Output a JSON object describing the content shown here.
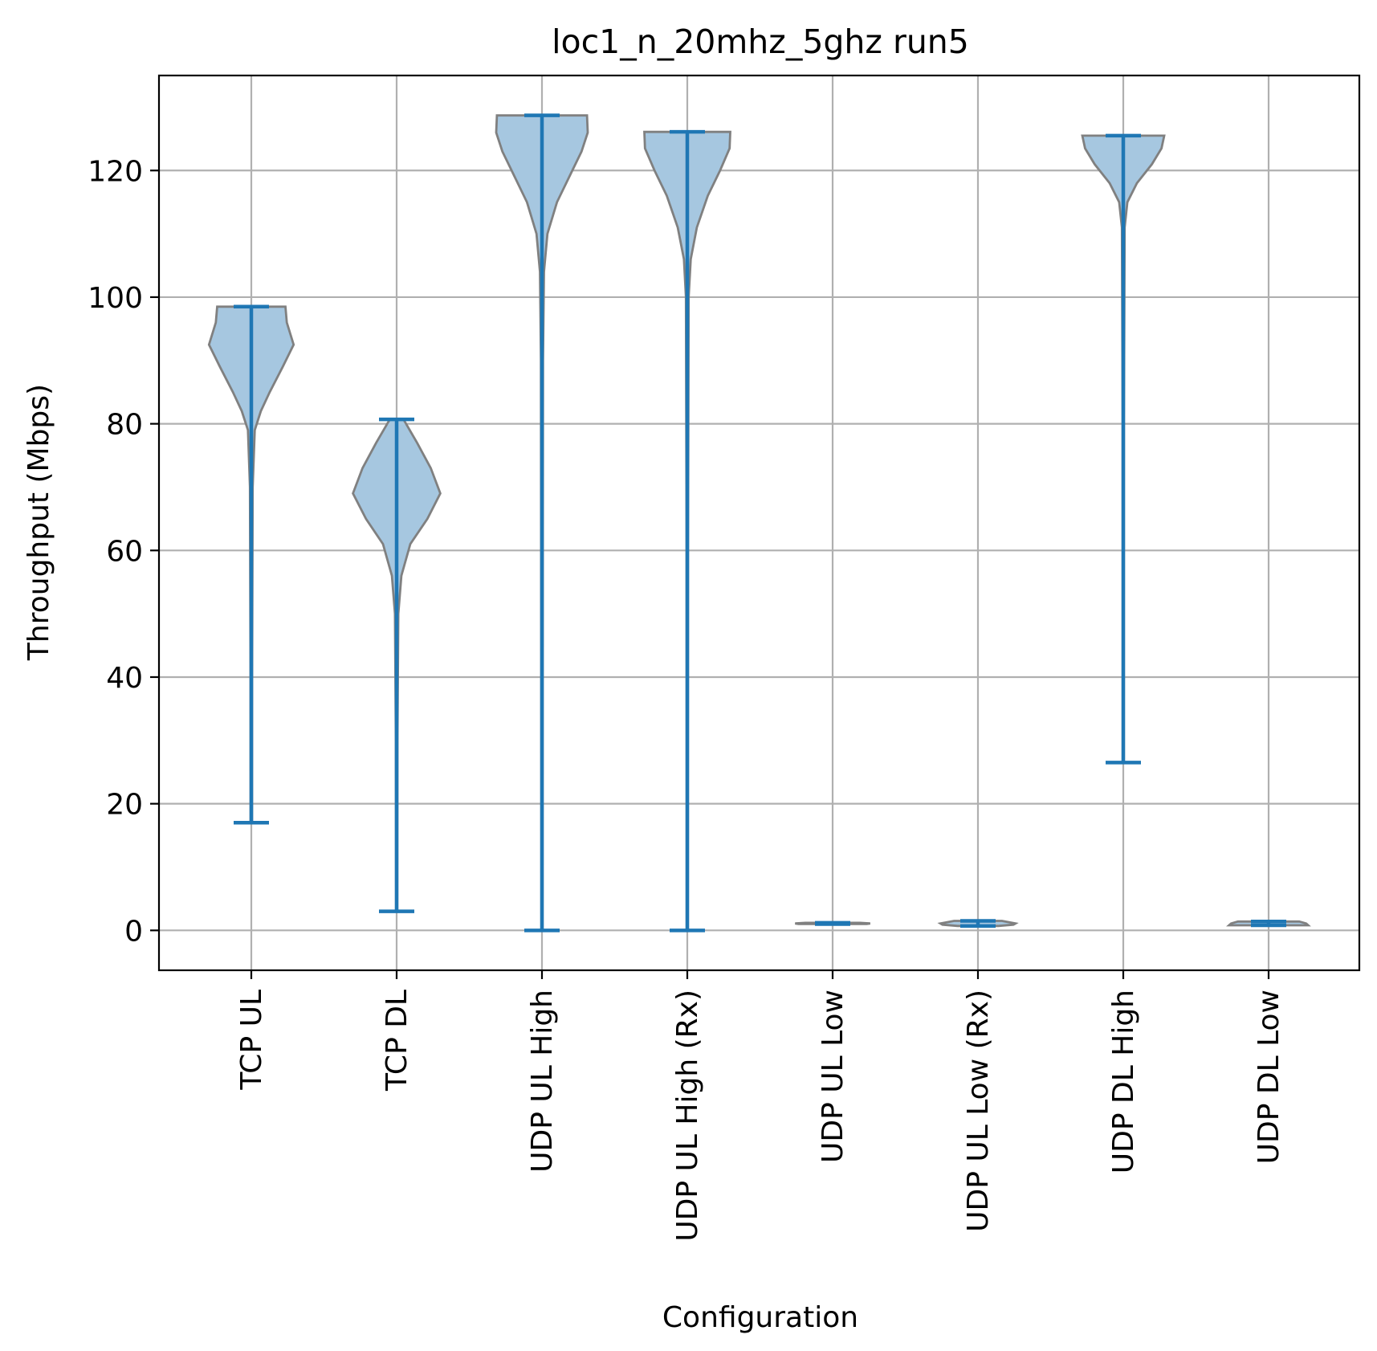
{
  "chart_data": {
    "type": "violin",
    "title": "loc1_n_20mhz_5ghz run5",
    "xlabel": "Configuration",
    "ylabel": "Throughput (Mbps)",
    "ylim": [
      -6.3,
      135
    ],
    "yticks": [
      0,
      20,
      40,
      60,
      80,
      100,
      120
    ],
    "grid": true,
    "colors": {
      "violin_fill": "#a6c7e0",
      "violin_edge": "#808080",
      "whisker": "#1f77b4",
      "grid": "#b0b0b0"
    },
    "categories": [
      "TCP  UL",
      "TCP DL",
      "UDP UL High",
      "UDP UL High (Rx)",
      "UDP UL Low",
      "UDP UL Low (Rx)",
      "UDP DL High",
      "UDP DL Low"
    ],
    "violins": [
      {
        "min": 17,
        "max": 98.5,
        "profile": [
          [
            98.5,
            0.5
          ],
          [
            96,
            0.52
          ],
          [
            92.5,
            0.62
          ],
          [
            89,
            0.46
          ],
          [
            85,
            0.27
          ],
          [
            82,
            0.14
          ],
          [
            79,
            0.05
          ],
          [
            70,
            0.02
          ],
          [
            40,
            0.012
          ],
          [
            17,
            0.01
          ]
        ]
      },
      {
        "min": 3,
        "max": 80.7,
        "profile": [
          [
            80.7,
            0.1
          ],
          [
            77,
            0.3
          ],
          [
            73,
            0.5
          ],
          [
            69,
            0.64
          ],
          [
            65,
            0.45
          ],
          [
            61,
            0.2
          ],
          [
            56,
            0.07
          ],
          [
            50,
            0.025
          ],
          [
            30,
            0.012
          ],
          [
            3,
            0.008
          ]
        ]
      },
      {
        "min": 0,
        "max": 128.7,
        "profile": [
          [
            128.7,
            0.66
          ],
          [
            126,
            0.67
          ],
          [
            123,
            0.58
          ],
          [
            119,
            0.4
          ],
          [
            115,
            0.22
          ],
          [
            110,
            0.08
          ],
          [
            104,
            0.03
          ],
          [
            90,
            0.015
          ],
          [
            40,
            0.01
          ],
          [
            0,
            0.008
          ]
        ]
      },
      {
        "min": 0,
        "max": 126.1,
        "profile": [
          [
            126.1,
            0.63
          ],
          [
            123.5,
            0.62
          ],
          [
            120,
            0.48
          ],
          [
            116,
            0.3
          ],
          [
            111,
            0.14
          ],
          [
            106,
            0.05
          ],
          [
            100,
            0.02
          ],
          [
            60,
            0.01
          ],
          [
            0,
            0.008
          ]
        ]
      },
      {
        "min": 1.0,
        "max": 1.2,
        "profile": [
          [
            1.2,
            0.4
          ],
          [
            1.1,
            0.55
          ],
          [
            1.0,
            0.5
          ]
        ]
      },
      {
        "min": 0.7,
        "max": 1.5,
        "profile": [
          [
            1.5,
            0.35
          ],
          [
            1.1,
            0.55
          ],
          [
            0.9,
            0.52
          ],
          [
            0.7,
            0.3
          ]
        ]
      },
      {
        "min": 26.5,
        "max": 125.5,
        "profile": [
          [
            125.5,
            0.6
          ],
          [
            123.5,
            0.56
          ],
          [
            121,
            0.42
          ],
          [
            118,
            0.2
          ],
          [
            115,
            0.06
          ],
          [
            111,
            0.02
          ],
          [
            80,
            0.01
          ],
          [
            26.5,
            0.008
          ]
        ]
      },
      {
        "min": 0.8,
        "max": 1.4,
        "profile": [
          [
            1.4,
            0.45
          ],
          [
            1.1,
            0.55
          ],
          [
            0.8,
            0.58
          ]
        ]
      }
    ]
  }
}
